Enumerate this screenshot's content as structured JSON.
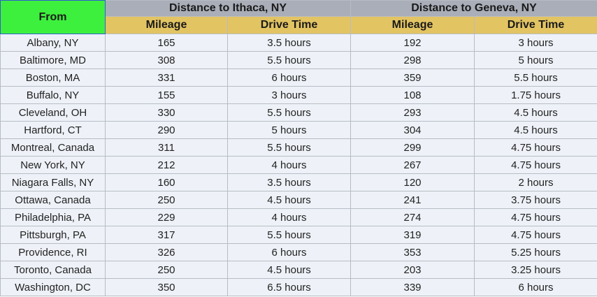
{
  "header": {
    "from_label": "From",
    "ithaca_label": "Distance to Ithaca, NY",
    "geneva_label": "Distance to Geneva, NY",
    "mileage_label": "Mileage",
    "drive_time_label": "Drive Time"
  },
  "colors": {
    "from_header_bg": "#3df03d",
    "group_header_bg": "#a9aeb8",
    "sub_header_bg": "#e3c463",
    "row_bg": "#eef2f8"
  },
  "rows": [
    {
      "from": "Albany, NY",
      "ithaca_miles": "165",
      "ithaca_time": "3.5 hours",
      "geneva_miles": "192",
      "geneva_time": "3 hours"
    },
    {
      "from": "Baltimore, MD",
      "ithaca_miles": "308",
      "ithaca_time": "5.5 hours",
      "geneva_miles": "298",
      "geneva_time": "5 hours"
    },
    {
      "from": "Boston, MA",
      "ithaca_miles": "331",
      "ithaca_time": "6 hours",
      "geneva_miles": "359",
      "geneva_time": "5.5 hours"
    },
    {
      "from": "Buffalo, NY",
      "ithaca_miles": "155",
      "ithaca_time": "3 hours",
      "geneva_miles": "108",
      "geneva_time": "1.75 hours"
    },
    {
      "from": "Cleveland, OH",
      "ithaca_miles": "330",
      "ithaca_time": "5.5 hours",
      "geneva_miles": "293",
      "geneva_time": "4.5 hours"
    },
    {
      "from": "Hartford, CT",
      "ithaca_miles": "290",
      "ithaca_time": "5 hours",
      "geneva_miles": "304",
      "geneva_time": "4.5 hours"
    },
    {
      "from": "Montreal, Canada",
      "ithaca_miles": "311",
      "ithaca_time": "5.5 hours",
      "geneva_miles": "299",
      "geneva_time": "4.75 hours"
    },
    {
      "from": "New York, NY",
      "ithaca_miles": "212",
      "ithaca_time": "4 hours",
      "geneva_miles": "267",
      "geneva_time": "4.75 hours"
    },
    {
      "from": "Niagara Falls, NY",
      "ithaca_miles": "160",
      "ithaca_time": "3.5 hours",
      "geneva_miles": "120",
      "geneva_time": "2 hours"
    },
    {
      "from": "Ottawa, Canada",
      "ithaca_miles": "250",
      "ithaca_time": "4.5 hours",
      "geneva_miles": "241",
      "geneva_time": "3.75 hours"
    },
    {
      "from": "Philadelphia, PA",
      "ithaca_miles": "229",
      "ithaca_time": "4 hours",
      "geneva_miles": "274",
      "geneva_time": "4.75 hours"
    },
    {
      "from": "Pittsburgh, PA",
      "ithaca_miles": "317",
      "ithaca_time": "5.5 hours",
      "geneva_miles": "319",
      "geneva_time": "4.75 hours"
    },
    {
      "from": "Providence, RI",
      "ithaca_miles": "326",
      "ithaca_time": "6 hours",
      "geneva_miles": "353",
      "geneva_time": "5.25 hours"
    },
    {
      "from": "Toronto, Canada",
      "ithaca_miles": "250",
      "ithaca_time": "4.5 hours",
      "geneva_miles": "203",
      "geneva_time": "3.25 hours"
    },
    {
      "from": "Washington, DC",
      "ithaca_miles": "350",
      "ithaca_time": "6.5 hours",
      "geneva_miles": "339",
      "geneva_time": "6 hours"
    }
  ]
}
